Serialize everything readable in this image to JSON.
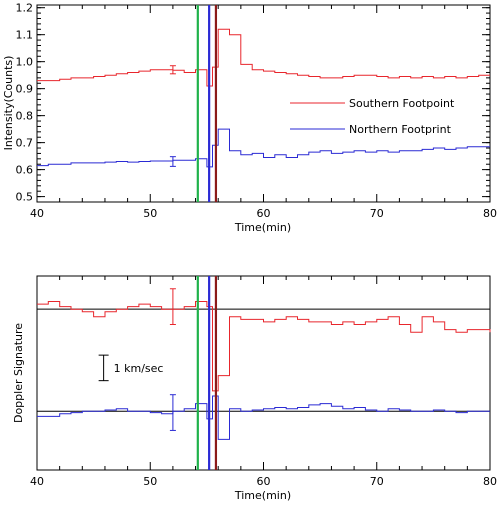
{
  "chart_data": [
    {
      "type": "line",
      "step": true,
      "xlabel": "Time(min)",
      "ylabel": "Intensity(Counts)",
      "xlim": [
        40,
        80
      ],
      "ylim": [
        0.48,
        1.21
      ],
      "xticks": [
        40,
        50,
        60,
        70,
        80
      ],
      "yticks": [
        0.5,
        0.6,
        0.7,
        0.8,
        0.9,
        1.0,
        1.1,
        1.2
      ],
      "ytick_labels": [
        "0.5",
        "0.6",
        "0.7",
        "0.8",
        "0.9",
        "1.0",
        "1.1",
        "1.2"
      ],
      "legend_position": "middle-right",
      "series": [
        {
          "name": "Southern Footpoint",
          "color": "#e8262c",
          "x": [
            40,
            41,
            42,
            43,
            44,
            45,
            46,
            47,
            48,
            49,
            50,
            51,
            52,
            53,
            54,
            55,
            55.5,
            56,
            57,
            58,
            59,
            60,
            61,
            62,
            63,
            64,
            65,
            66,
            67,
            68,
            69,
            70,
            71,
            72,
            73,
            74,
            75,
            76,
            77,
            78,
            79,
            80
          ],
          "y": [
            0.93,
            0.93,
            0.935,
            0.94,
            0.94,
            0.945,
            0.95,
            0.955,
            0.96,
            0.965,
            0.97,
            0.97,
            0.968,
            0.96,
            0.97,
            0.91,
            0.98,
            1.12,
            1.1,
            0.99,
            0.97,
            0.965,
            0.96,
            0.955,
            0.95,
            0.945,
            0.94,
            0.94,
            0.945,
            0.95,
            0.95,
            0.945,
            0.94,
            0.945,
            0.94,
            0.945,
            0.94,
            0.945,
            0.94,
            0.945,
            0.95,
            0.95
          ]
        },
        {
          "name": "Northern Footprint",
          "color": "#2a2ad4",
          "x": [
            40,
            41,
            42,
            43,
            44,
            45,
            46,
            47,
            48,
            49,
            50,
            51,
            52,
            53,
            54,
            55,
            55.5,
            56,
            57,
            58,
            59,
            60,
            61,
            62,
            63,
            64,
            65,
            66,
            67,
            68,
            69,
            70,
            71,
            72,
            73,
            74,
            75,
            76,
            77,
            78,
            79,
            80
          ],
          "y": [
            0.615,
            0.62,
            0.62,
            0.625,
            0.625,
            0.625,
            0.628,
            0.63,
            0.628,
            0.63,
            0.632,
            0.632,
            0.635,
            0.635,
            0.64,
            0.61,
            0.69,
            0.75,
            0.67,
            0.655,
            0.66,
            0.645,
            0.655,
            0.645,
            0.655,
            0.665,
            0.67,
            0.66,
            0.665,
            0.67,
            0.665,
            0.67,
            0.665,
            0.67,
            0.67,
            0.675,
            0.68,
            0.675,
            0.68,
            0.685,
            0.685,
            0.685
          ]
        }
      ],
      "error_bars": [
        {
          "series": 0,
          "x": 52,
          "y": 0.97,
          "err": 0.015,
          "color": "#e8262c"
        },
        {
          "series": 1,
          "x": 52,
          "y": 0.63,
          "err": 0.018,
          "color": "#2a2ad4"
        }
      ],
      "vlines": [
        {
          "x": 54.2,
          "color": "#1fb24a"
        },
        {
          "x": 55.2,
          "color": "#2a2ad4"
        },
        {
          "x": 55.8,
          "color": "#8b1a1a"
        }
      ]
    },
    {
      "type": "line",
      "step": true,
      "xlabel": "Time(min)",
      "ylabel": "Doppler Signature",
      "xlim": [
        40,
        80
      ],
      "ylim": [
        -6.3,
        1.3
      ],
      "xticks": [
        40,
        50,
        60,
        70,
        80
      ],
      "yticks": [],
      "scale_bar": {
        "label": "1 km/sec",
        "value": 1.0,
        "y_center": -2.3,
        "x": 45
      },
      "hlines": [
        {
          "y": 0,
          "color": "#000000"
        },
        {
          "y": -4.0,
          "color": "#000000"
        }
      ],
      "series": [
        {
          "name": "Southern Footpoint",
          "color": "#e8262c",
          "x": [
            40,
            41,
            42,
            43,
            44,
            45,
            46,
            47,
            48,
            49,
            50,
            51,
            52,
            53,
            54,
            55,
            55.5,
            56,
            57,
            58,
            59,
            60,
            61,
            62,
            63,
            64,
            65,
            66,
            67,
            68,
            69,
            70,
            71,
            72,
            73,
            74,
            75,
            76,
            77,
            78,
            79,
            80
          ],
          "y": [
            0.2,
            0.3,
            0.1,
            0.0,
            -0.1,
            -0.3,
            -0.1,
            0.0,
            0.1,
            0.2,
            0.1,
            0.0,
            0.0,
            0.1,
            0.3,
            0.1,
            -3.2,
            -2.6,
            -0.3,
            -0.4,
            -0.4,
            -0.5,
            -0.4,
            -0.3,
            -0.4,
            -0.5,
            -0.5,
            -0.6,
            -0.5,
            -0.6,
            -0.5,
            -0.4,
            -0.3,
            -0.6,
            -0.9,
            -0.3,
            -0.5,
            -0.8,
            -0.9,
            -0.8,
            -0.8,
            -0.9
          ]
        },
        {
          "name": "Northern Footprint",
          "color": "#2a2ad4",
          "x": [
            40,
            41,
            42,
            43,
            44,
            45,
            46,
            47,
            48,
            49,
            50,
            51,
            52,
            53,
            54,
            55,
            55.5,
            56,
            57,
            58,
            59,
            60,
            61,
            62,
            63,
            64,
            65,
            66,
            67,
            68,
            69,
            70,
            71,
            72,
            73,
            74,
            75,
            76,
            77,
            78,
            79,
            80
          ],
          "y": [
            -4.2,
            -4.2,
            -4.1,
            -4.05,
            -4.0,
            -4.0,
            -3.95,
            -3.9,
            -4.0,
            -4.0,
            -4.05,
            -4.1,
            -4.0,
            -3.9,
            -3.7,
            -4.3,
            -3.4,
            -5.1,
            -3.9,
            -4.0,
            -3.95,
            -3.9,
            -3.85,
            -3.9,
            -3.85,
            -3.75,
            -3.7,
            -3.8,
            -3.9,
            -3.85,
            -3.95,
            -4.0,
            -3.9,
            -3.95,
            -4.0,
            -4.0,
            -3.95,
            -4.0,
            -4.05,
            -4.0,
            -4.0,
            -4.0
          ]
        }
      ],
      "error_bars": [
        {
          "series": 0,
          "x": 52,
          "y": 0.1,
          "err": 0.7,
          "color": "#e8262c"
        },
        {
          "series": 1,
          "x": 52,
          "y": -4.05,
          "err": 0.7,
          "color": "#2a2ad4"
        }
      ],
      "vlines": [
        {
          "x": 54.2,
          "color": "#1fb24a"
        },
        {
          "x": 55.2,
          "color": "#2a2ad4"
        },
        {
          "x": 55.8,
          "color": "#8b1a1a"
        }
      ]
    }
  ]
}
